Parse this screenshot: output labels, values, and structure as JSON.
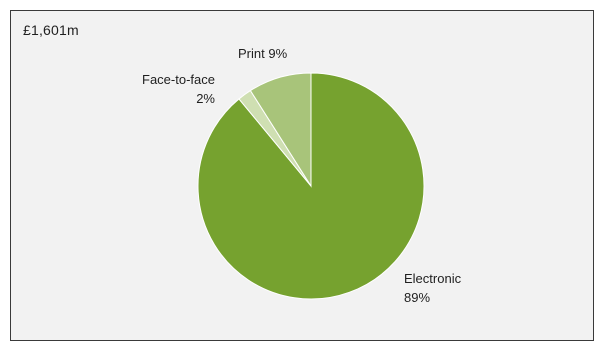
{
  "chart_data": {
    "type": "pie",
    "title": "£1,601m",
    "slices": [
      {
        "label": "Electronic",
        "value_text": "89%",
        "value": 89,
        "color": "#76a22f"
      },
      {
        "label": "Face-to-face",
        "value_text": "2%",
        "value": 2,
        "color": "#cfdfb2"
      },
      {
        "label": "Print",
        "value_text": "9%",
        "value": 9,
        "color": "#a8c47a"
      }
    ],
    "start_angle_deg": 0,
    "direction": "clockwise"
  }
}
